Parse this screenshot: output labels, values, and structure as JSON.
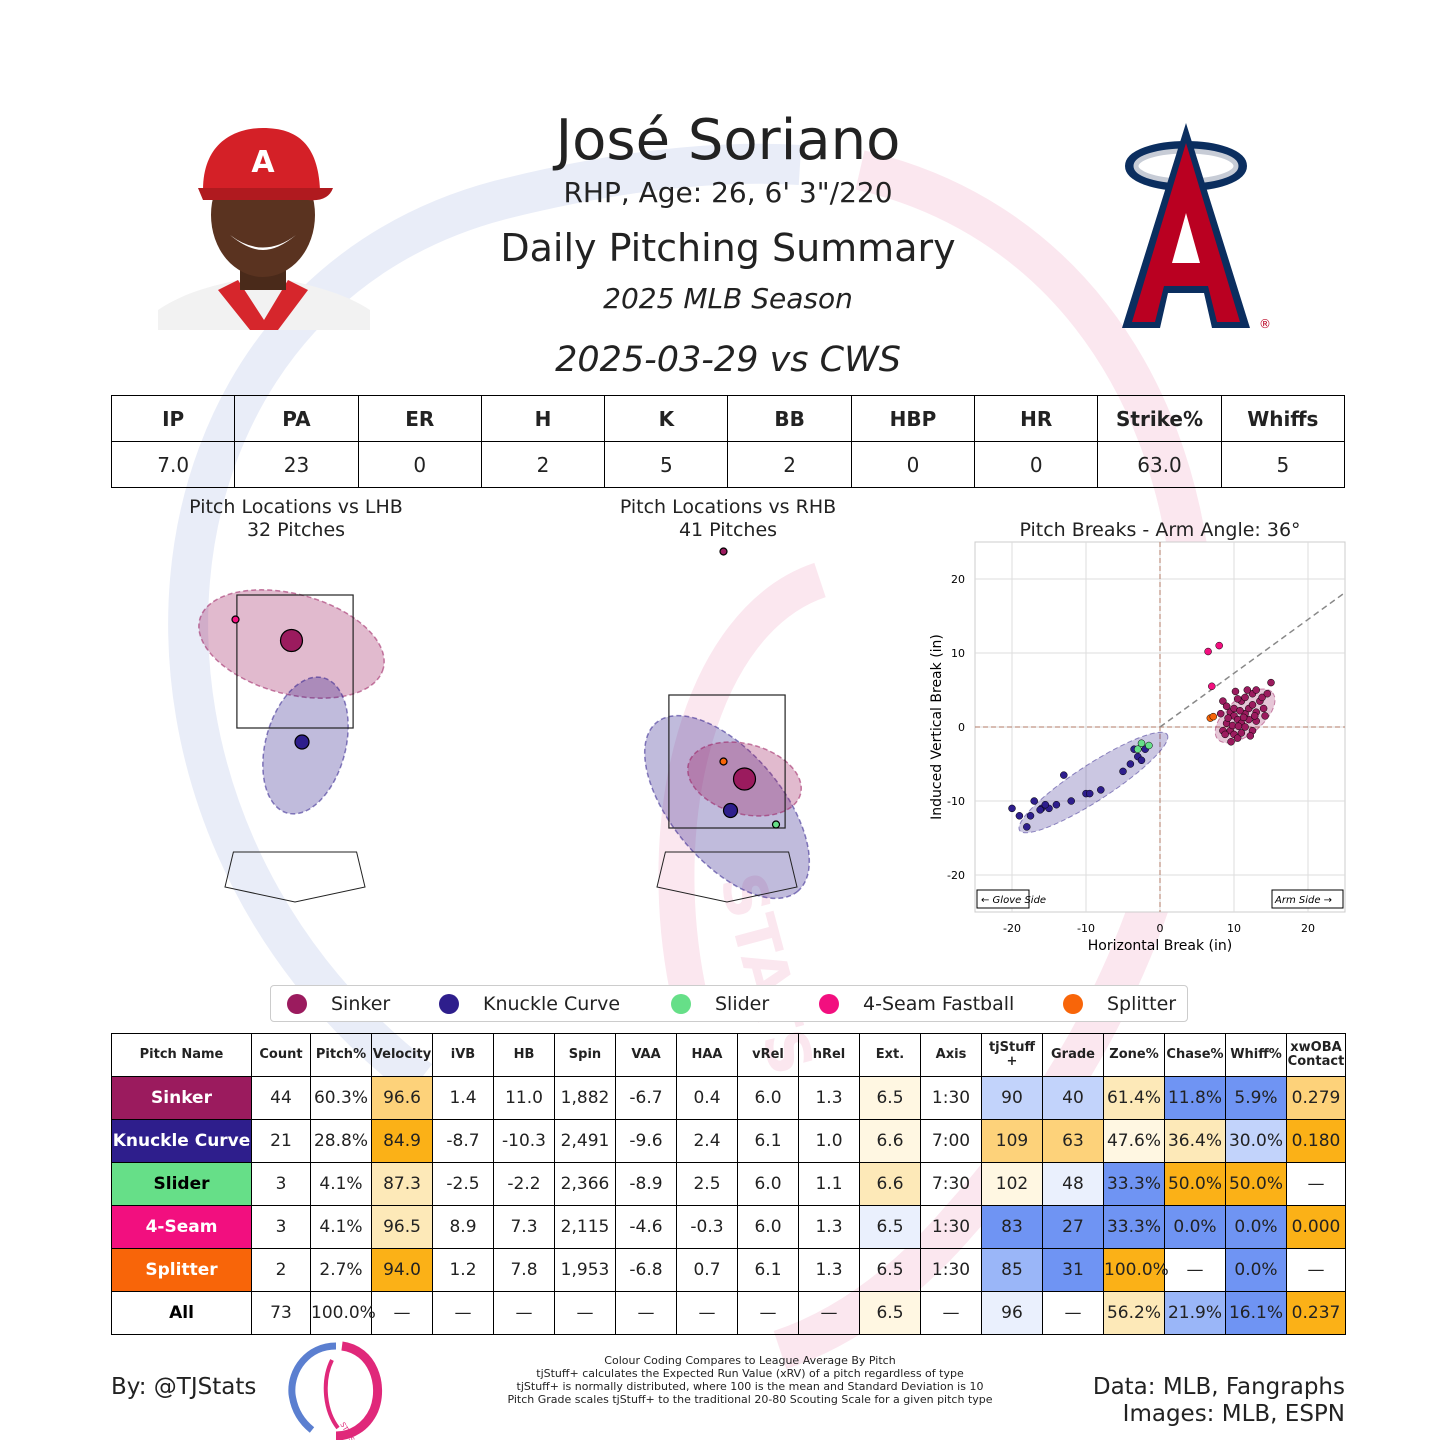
{
  "header": {
    "name": "José Soriano",
    "info": "RHP, Age: 26, 6' 3\"/220",
    "title": "Daily Pitching Summary",
    "season": "2025 MLB Season",
    "game": "2025-03-29 vs CWS"
  },
  "game_stats": {
    "headers": [
      "IP",
      "PA",
      "ER",
      "H",
      "K",
      "BB",
      "HBP",
      "HR",
      "Strike%",
      "Whiffs"
    ],
    "values": [
      "7.0",
      "23",
      "0",
      "2",
      "5",
      "2",
      "0",
      "0",
      "63.0",
      "5"
    ]
  },
  "colors": {
    "Sinker": "#9b1b5e",
    "Knuckle Curve": "#2e1e8c",
    "Slider": "#66df88",
    "4-Seam Fastball": "#f20f7f",
    "Splitter": "#f86509",
    "cell_hi_strong": "#fbb117",
    "cell_hi_mid": "#fdd27a",
    "cell_hi_light": "#fde9b8",
    "cell_hi_pale": "#fff7e2",
    "cell_neutral": "#ffffff",
    "cell_lo_pale": "#eaf0fd",
    "cell_lo_light": "#c2d3fb",
    "cell_lo_mid": "#9ab6f8",
    "cell_lo_strong": "#6f94f3"
  },
  "chart_data": [
    {
      "type": "scatter",
      "title": "Pitch Locations vs LHB",
      "subtitle": "32 Pitches",
      "series": [
        {
          "name": "Sinker",
          "points": [
            [
              -0.05,
              2.85
            ]
          ],
          "mean": [
            -0.05,
            2.85
          ]
        },
        {
          "name": "Knuckle Curve",
          "points": [
            [
              0.1,
              1.4
            ]
          ],
          "mean": [
            0.1,
            1.4
          ]
        },
        {
          "name": "4-Seam Fastball",
          "points": [
            [
              -0.85,
              3.15
            ]
          ]
        }
      ]
    },
    {
      "type": "scatter",
      "title": "Pitch Locations vs RHB",
      "subtitle": "41 Pitches",
      "series": [
        {
          "name": "Sinker",
          "points": [
            [
              0.25,
              2.3
            ]
          ],
          "mean": [
            0.25,
            2.3
          ]
        },
        {
          "name": "Knuckle Curve",
          "points": [
            [
              0.05,
              1.85
            ]
          ],
          "mean": [
            0.05,
            1.85
          ]
        },
        {
          "name": "Slider",
          "points": [
            [
              0.7,
              1.65
            ]
          ]
        },
        {
          "name": "Splitter",
          "points": [
            [
              -0.05,
              2.55
            ]
          ]
        },
        {
          "name": "Sinker",
          "points": [
            [
              -0.05,
              5.55
            ]
          ]
        }
      ]
    },
    {
      "type": "scatter",
      "title": "Pitch Breaks - Arm Angle: 36°",
      "xlabel": "Horizontal Break (in)",
      "ylabel": "Induced Vertical Break (in)",
      "xlim": [
        -25,
        25
      ],
      "ylim": [
        -25,
        25
      ],
      "xticks": [
        -20,
        -10,
        0,
        10,
        20
      ],
      "yticks": [
        -20,
        -10,
        0,
        10,
        20
      ],
      "grid": true,
      "annotations": [
        "← Glove Side",
        "Arm Side →"
      ],
      "series": [
        {
          "name": "Sinker",
          "points": [
            [
              8.5,
              3.5
            ],
            [
              9,
              2.8
            ],
            [
              9.5,
              2
            ],
            [
              10,
              1.5
            ],
            [
              10.5,
              1
            ],
            [
              11,
              0.5
            ],
            [
              11.5,
              1.8
            ],
            [
              12,
              2.5
            ],
            [
              12.5,
              3
            ],
            [
              13,
              2
            ],
            [
              11,
              3.5
            ],
            [
              10,
              2.5
            ],
            [
              9,
              0.5
            ],
            [
              9.5,
              -0.5
            ],
            [
              10,
              -1
            ],
            [
              10.5,
              -1.5
            ],
            [
              8.5,
              -0.5
            ],
            [
              11.5,
              0
            ],
            [
              12,
              1
            ],
            [
              12.5,
              4.5
            ],
            [
              13.5,
              3.5
            ],
            [
              14,
              2.5
            ],
            [
              15,
              6
            ],
            [
              13,
              5
            ],
            [
              11.5,
              4
            ],
            [
              10.5,
              3.8
            ],
            [
              9.8,
              0.2
            ],
            [
              8.8,
              -1
            ],
            [
              11,
              -0.8
            ],
            [
              12.5,
              -0.5
            ],
            [
              13,
              0.8
            ],
            [
              14.2,
              1.5
            ],
            [
              10.2,
              4.8
            ],
            [
              9.2,
              1.2
            ],
            [
              12.2,
              -1.2
            ],
            [
              11.8,
              5
            ],
            [
              13.8,
              4
            ],
            [
              10.8,
              2.2
            ],
            [
              8.2,
              1.8
            ],
            [
              9.6,
              -2
            ],
            [
              12.8,
              1.5
            ],
            [
              11.3,
              1.3
            ],
            [
              10.6,
              0.1
            ],
            [
              14.5,
              4.5
            ]
          ]
        },
        {
          "name": "Knuckle Curve",
          "points": [
            [
              -20,
              -11
            ],
            [
              -19,
              -12
            ],
            [
              -18,
              -13.5
            ],
            [
              -17,
              -10
            ],
            [
              -16,
              -11
            ],
            [
              -15,
              -11
            ],
            [
              -14,
              -10.5
            ],
            [
              -12,
              -10
            ],
            [
              -10,
              -9
            ],
            [
              -8,
              -8.5
            ],
            [
              -5,
              -6
            ],
            [
              -4,
              -5
            ],
            [
              -3,
              -4
            ],
            [
              -2,
              -3
            ],
            [
              -13,
              -6.5
            ],
            [
              -17.5,
              -12
            ],
            [
              -15.5,
              -10.5
            ],
            [
              -9.5,
              -9
            ],
            [
              -3.5,
              -3
            ],
            [
              -2.5,
              -4.5
            ],
            [
              -16.2,
              -11.2
            ]
          ]
        },
        {
          "name": "Slider",
          "points": [
            [
              -2.5,
              -2.2
            ],
            [
              -1.5,
              -2.5
            ],
            [
              -3,
              -3
            ]
          ]
        },
        {
          "name": "4-Seam Fastball",
          "points": [
            [
              6.5,
              10.2
            ],
            [
              8,
              11
            ],
            [
              7,
              5.5
            ]
          ]
        },
        {
          "name": "Splitter",
          "points": [
            [
              6.8,
              1.2
            ],
            [
              7.2,
              1.4
            ]
          ]
        }
      ]
    }
  ],
  "legend": [
    "Sinker",
    "Knuckle Curve",
    "Slider",
    "4-Seam Fastball",
    "Splitter"
  ],
  "pitch_table": {
    "headers": [
      "Pitch Name",
      "Count",
      "Pitch%",
      "Velocity",
      "iVB",
      "HB",
      "Spin",
      "VAA",
      "HAA",
      "vRel",
      "hRel",
      "Ext.",
      "Axis",
      "tjStuff +",
      "Grade",
      "Zone%",
      "Chase%",
      "Whiff%",
      "xwOBA Contact"
    ],
    "rows": [
      {
        "name": "Sinker",
        "color_key": "Sinker",
        "cells": [
          "44",
          "60.3%",
          "96.6",
          "1.4",
          "11.0",
          "1,882",
          "-6.7",
          "0.4",
          "6.0",
          "1.3",
          "6.5",
          "1:30",
          "90",
          "40",
          "61.4%",
          "11.8%",
          "5.9%",
          "0.279"
        ],
        "shade": [
          "",
          "",
          "cell_hi_mid",
          "",
          "",
          "",
          "",
          "",
          "",
          "",
          "cell_hi_pale",
          "",
          "cell_lo_light",
          "cell_lo_light",
          "cell_hi_light",
          "cell_lo_strong",
          "cell_lo_strong",
          "cell_hi_mid"
        ]
      },
      {
        "name": "Knuckle Curve",
        "color_key": "Knuckle Curve",
        "cells": [
          "21",
          "28.8%",
          "84.9",
          "-8.7",
          "-10.3",
          "2,491",
          "-9.6",
          "2.4",
          "6.1",
          "1.0",
          "6.6",
          "7:00",
          "109",
          "63",
          "47.6%",
          "36.4%",
          "30.0%",
          "0.180"
        ],
        "shade": [
          "",
          "",
          "cell_hi_strong",
          "",
          "",
          "",
          "",
          "",
          "",
          "",
          "cell_hi_pale",
          "",
          "cell_hi_mid",
          "cell_hi_mid",
          "cell_hi_pale",
          "cell_hi_light",
          "cell_lo_light",
          "cell_hi_strong"
        ]
      },
      {
        "name": "Slider",
        "color_key": "Slider",
        "cells": [
          "3",
          "4.1%",
          "87.3",
          "-2.5",
          "-2.2",
          "2,366",
          "-8.9",
          "2.5",
          "6.0",
          "1.1",
          "6.6",
          "7:30",
          "102",
          "48",
          "33.3%",
          "50.0%",
          "50.0%",
          "—"
        ],
        "shade": [
          "",
          "",
          "cell_hi_light",
          "",
          "",
          "",
          "",
          "",
          "",
          "",
          "cell_hi_light",
          "",
          "cell_hi_pale",
          "cell_lo_pale",
          "cell_lo_strong",
          "cell_hi_strong",
          "cell_hi_strong",
          ""
        ]
      },
      {
        "name": "4-Seam",
        "color_key": "4-Seam Fastball",
        "cells": [
          "3",
          "4.1%",
          "96.5",
          "8.9",
          "7.3",
          "2,115",
          "-4.6",
          "-0.3",
          "6.0",
          "1.3",
          "6.5",
          "1:30",
          "83",
          "27",
          "33.3%",
          "0.0%",
          "0.0%",
          "0.000"
        ],
        "shade": [
          "",
          "",
          "cell_hi_light",
          "",
          "",
          "",
          "",
          "",
          "",
          "",
          "cell_lo_pale",
          "",
          "cell_lo_strong",
          "cell_lo_strong",
          "cell_lo_strong",
          "cell_lo_strong",
          "cell_lo_strong",
          "cell_hi_strong"
        ]
      },
      {
        "name": "Splitter",
        "color_key": "Splitter",
        "cells": [
          "2",
          "2.7%",
          "94.0",
          "1.2",
          "7.8",
          "1,953",
          "-6.8",
          "0.7",
          "6.1",
          "1.3",
          "6.5",
          "1:30",
          "85",
          "31",
          "100.0%",
          "—",
          "0.0%",
          "—"
        ],
        "shade": [
          "",
          "",
          "cell_hi_strong",
          "",
          "",
          "",
          "",
          "",
          "",
          "",
          "",
          "",
          "cell_lo_mid",
          "cell_lo_strong",
          "cell_hi_strong",
          "",
          "cell_lo_strong",
          ""
        ]
      },
      {
        "name": "All",
        "color_key": "",
        "cells": [
          "73",
          "100.0%",
          "—",
          "—",
          "—",
          "—",
          "—",
          "—",
          "—",
          "—",
          "6.5",
          "—",
          "96",
          "—",
          "56.2%",
          "21.9%",
          "16.1%",
          "0.237"
        ],
        "shade": [
          "",
          "",
          "",
          "",
          "",
          "",
          "",
          "",
          "",
          "",
          "cell_hi_pale",
          "",
          "cell_lo_pale",
          "",
          "cell_hi_light",
          "cell_lo_mid",
          "cell_lo_strong",
          "cell_hi_strong"
        ]
      }
    ]
  },
  "footer": {
    "by": "By: @TJStats",
    "notes": [
      "Colour Coding Compares to League Average By Pitch",
      "tjStuff+ calculates the Expected Run Value (xRV) of a pitch regardless of type",
      "tjStuff+ is normally distributed, where 100 is the mean and Standard Deviation is 10",
      "Pitch Grade scales tjStuff+ to the traditional 20-80 Scouting Scale for a given pitch type"
    ],
    "data_credit": "Data: MLB, Fangraphs",
    "image_credit": "Images: MLB, ESPN",
    "watermark_text": "STATS"
  }
}
